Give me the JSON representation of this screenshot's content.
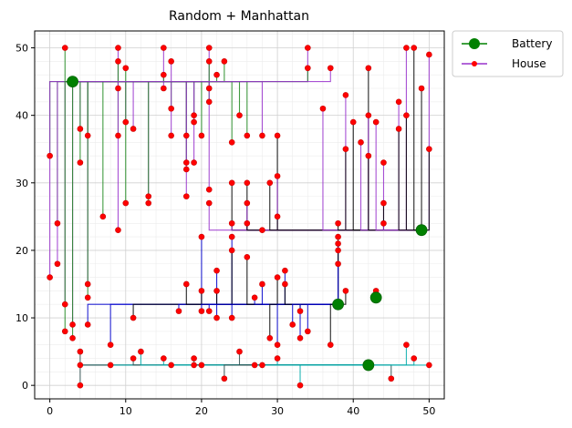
{
  "chart_data": {
    "type": "scatter",
    "title": "Random + Manhattan",
    "xlabel": "",
    "ylabel": "",
    "xlim": [
      -2,
      52
    ],
    "ylim": [
      -2,
      52.5
    ],
    "xticks": [
      0,
      10,
      20,
      30,
      40,
      50
    ],
    "yticks": [
      0,
      10,
      20,
      30,
      40,
      50
    ],
    "grid": true,
    "minor_grid": true,
    "legend_position": "outside-top-right",
    "series": [
      {
        "name": "Battery",
        "color": "#008000",
        "marker": "large-circle",
        "points": [
          [
            3,
            45
          ],
          [
            49,
            23
          ],
          [
            38,
            12
          ],
          [
            43,
            13
          ],
          [
            42,
            3
          ]
        ]
      },
      {
        "name": "House",
        "color": "#ff0000",
        "edge_color": "#cc0000",
        "marker": "small-circle",
        "points": [
          [
            0,
            34
          ],
          [
            0,
            16
          ],
          [
            1,
            24
          ],
          [
            1,
            18
          ],
          [
            2,
            50
          ],
          [
            2,
            12
          ],
          [
            2,
            8
          ],
          [
            3,
            9
          ],
          [
            3,
            7
          ],
          [
            4,
            38
          ],
          [
            4,
            33
          ],
          [
            4,
            5
          ],
          [
            4,
            3
          ],
          [
            4,
            0
          ],
          [
            5,
            37
          ],
          [
            5,
            15
          ],
          [
            5,
            13
          ],
          [
            5,
            9
          ],
          [
            7,
            25
          ],
          [
            8,
            6
          ],
          [
            8,
            3
          ],
          [
            9,
            50
          ],
          [
            9,
            48
          ],
          [
            9,
            44
          ],
          [
            9,
            37
          ],
          [
            9,
            23
          ],
          [
            10,
            47
          ],
          [
            10,
            39
          ],
          [
            10,
            27
          ],
          [
            11,
            38
          ],
          [
            11,
            10
          ],
          [
            11,
            4
          ],
          [
            12,
            5
          ],
          [
            13,
            28
          ],
          [
            13,
            27
          ],
          [
            15,
            50
          ],
          [
            15,
            46
          ],
          [
            15,
            44
          ],
          [
            15,
            4
          ],
          [
            16,
            48
          ],
          [
            16,
            41
          ],
          [
            16,
            37
          ],
          [
            16,
            3
          ],
          [
            17,
            11
          ],
          [
            18,
            37
          ],
          [
            18,
            33
          ],
          [
            18,
            32
          ],
          [
            18,
            28
          ],
          [
            18,
            15
          ],
          [
            19,
            40
          ],
          [
            19,
            39
          ],
          [
            19,
            33
          ],
          [
            19,
            4
          ],
          [
            19,
            3
          ],
          [
            20,
            37
          ],
          [
            20,
            22
          ],
          [
            20,
            14
          ],
          [
            20,
            11
          ],
          [
            20,
            3
          ],
          [
            21,
            50
          ],
          [
            21,
            48
          ],
          [
            21,
            44
          ],
          [
            21,
            42
          ],
          [
            21,
            29
          ],
          [
            21,
            27
          ],
          [
            21,
            11
          ],
          [
            22,
            46
          ],
          [
            22,
            17
          ],
          [
            22,
            14
          ],
          [
            22,
            10
          ],
          [
            23,
            48
          ],
          [
            23,
            1
          ],
          [
            24,
            36
          ],
          [
            24,
            30
          ],
          [
            24,
            24
          ],
          [
            24,
            22
          ],
          [
            24,
            20
          ],
          [
            24,
            10
          ],
          [
            25,
            40
          ],
          [
            25,
            5
          ],
          [
            26,
            37
          ],
          [
            26,
            30
          ],
          [
            26,
            27
          ],
          [
            26,
            24
          ],
          [
            26,
            19
          ],
          [
            27,
            13
          ],
          [
            27,
            3
          ],
          [
            28,
            37
          ],
          [
            28,
            23
          ],
          [
            28,
            15
          ],
          [
            28,
            3
          ],
          [
            29,
            30
          ],
          [
            29,
            7
          ],
          [
            30,
            37
          ],
          [
            30,
            31
          ],
          [
            30,
            25
          ],
          [
            30,
            16
          ],
          [
            30,
            6
          ],
          [
            30,
            4
          ],
          [
            31,
            17
          ],
          [
            31,
            15
          ],
          [
            32,
            9
          ],
          [
            33,
            11
          ],
          [
            33,
            7
          ],
          [
            33,
            0
          ],
          [
            34,
            50
          ],
          [
            34,
            47
          ],
          [
            34,
            8
          ],
          [
            36,
            41
          ],
          [
            37,
            47
          ],
          [
            37,
            6
          ],
          [
            38,
            24
          ],
          [
            38,
            22
          ],
          [
            38,
            21
          ],
          [
            38,
            20
          ],
          [
            38,
            18
          ],
          [
            39,
            43
          ],
          [
            39,
            35
          ],
          [
            39,
            14
          ],
          [
            40,
            39
          ],
          [
            41,
            36
          ],
          [
            42,
            47
          ],
          [
            42,
            40
          ],
          [
            42,
            34
          ],
          [
            43,
            39
          ],
          [
            43,
            14
          ],
          [
            44,
            33
          ],
          [
            44,
            27
          ],
          [
            44,
            24
          ],
          [
            45,
            1
          ],
          [
            46,
            42
          ],
          [
            46,
            38
          ],
          [
            47,
            50
          ],
          [
            47,
            40
          ],
          [
            47,
            6
          ],
          [
            48,
            50
          ],
          [
            48,
            4
          ],
          [
            49,
            44
          ],
          [
            50,
            49
          ],
          [
            50,
            35
          ],
          [
            50,
            3
          ]
        ]
      }
    ],
    "connection_styles": [
      {
        "name": "green-net",
        "color": "#228b22"
      },
      {
        "name": "purple-net",
        "color": "#9932cc"
      },
      {
        "name": "black-net",
        "color": "#000000"
      },
      {
        "name": "blue-net",
        "color": "#0000cd"
      },
      {
        "name": "cyan-net",
        "color": "#00aaaa"
      },
      {
        "name": "dark-slate-net",
        "color": "#2f4f4f"
      }
    ]
  }
}
